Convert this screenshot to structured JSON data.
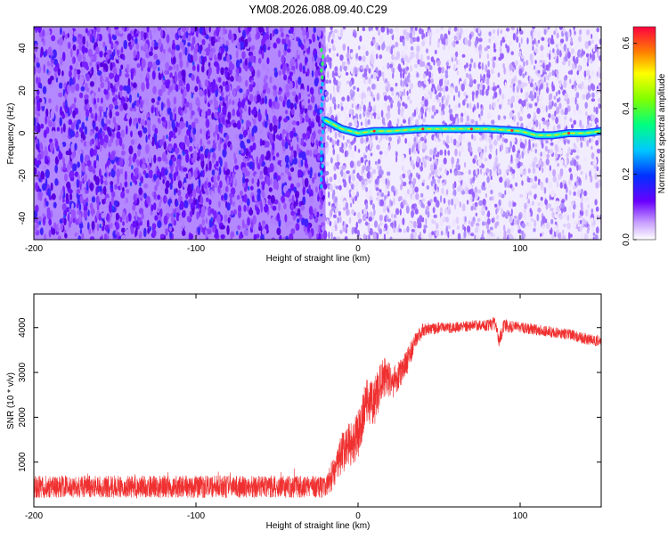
{
  "title": "YM08.2026.088.09.40.C29",
  "chart_data": [
    {
      "type": "heatmap",
      "xlabel": "Height of straight line (km)",
      "ylabel": "Frequency (Hz)",
      "xlim": [
        -200,
        150
      ],
      "ylim": [
        -50,
        50
      ],
      "xticks": [
        "-200",
        "-100",
        "0",
        "100"
      ],
      "xtick_values": [
        -200,
        -100,
        0,
        100
      ],
      "yticks": [
        "-40",
        "-20",
        "0",
        "20",
        "40"
      ],
      "ytick_values": [
        -40,
        -20,
        0,
        20,
        40
      ],
      "colorbar": {
        "label": "Normalized spectral amplitude",
        "range": [
          0,
          0.65
        ],
        "ticks": [
          "0.0",
          "0.2",
          "0.4",
          "0.6"
        ],
        "tick_values": [
          0.0,
          0.2,
          0.4,
          0.6
        ]
      },
      "ridge": {
        "onset_height_km": -20,
        "vertical_segment_freq_range_hz": [
          -25,
          40
        ],
        "x": [
          -20,
          -15,
          -10,
          -5,
          0,
          10,
          20,
          40,
          60,
          80,
          100,
          110,
          120,
          130,
          140,
          150
        ],
        "y": [
          6,
          4,
          2,
          1,
          0,
          1,
          1,
          2,
          2,
          2,
          1,
          -1,
          -1,
          0,
          0,
          1
        ]
      },
      "noise": {
        "strong_background_below_km": -20
      }
    },
    {
      "type": "line",
      "xlabel": "Height of straight line (km)",
      "ylabel": "SNR (10 * v/v)",
      "xlim": [
        -200,
        150
      ],
      "ylim": [
        0,
        4750
      ],
      "xticks": [
        "-200",
        "-100",
        "0",
        "100"
      ],
      "xtick_values": [
        -200,
        -100,
        0,
        100
      ],
      "yticks": [
        "1000",
        "2000",
        "3000",
        "4000"
      ],
      "ytick_values": [
        1000,
        2000,
        3000,
        4000
      ],
      "color": "#f03030",
      "series": [
        {
          "x": [
            -200,
            -150,
            -100,
            -50,
            -20,
            -18,
            -10,
            0,
            5,
            10,
            15,
            20,
            25,
            30,
            35,
            40,
            50,
            60,
            70,
            80,
            85,
            87,
            90,
            100,
            110,
            120,
            130,
            140,
            150
          ],
          "y": [
            450,
            430,
            450,
            450,
            450,
            550,
            1200,
            1600,
            2400,
            2300,
            2900,
            2800,
            2900,
            3200,
            3700,
            3950,
            4000,
            4000,
            4050,
            4050,
            4100,
            3700,
            4050,
            4000,
            3950,
            3900,
            3850,
            3750,
            3700
          ],
          "spread": [
            400,
            400,
            400,
            400,
            400,
            600,
            900,
            1100,
            1000,
            1100,
            900,
            900,
            700,
            600,
            400,
            300,
            250,
            250,
            250,
            250,
            300,
            350,
            300,
            250,
            250,
            250,
            250,
            250,
            250
          ]
        }
      ]
    }
  ]
}
